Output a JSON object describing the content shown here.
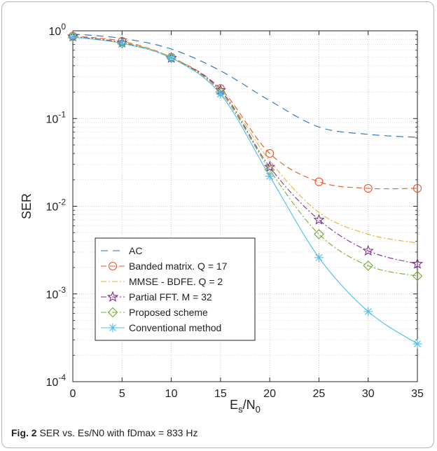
{
  "caption": {
    "label": "Fig. 2",
    "text": "SER vs. Es/N0 with fDmax = 833 Hz"
  },
  "chart_data": {
    "type": "line",
    "xlabel": "Es/N0",
    "ylabel": "SER",
    "xlim": [
      0,
      35
    ],
    "ylim": [
      0.0001,
      1
    ],
    "yscale": "log",
    "xticks": [
      "0",
      "5",
      "10",
      "15",
      "20",
      "25",
      "30",
      "35"
    ],
    "yticks": [
      "10^-4",
      "10^-3",
      "10^-2",
      "10^-1",
      "10^0"
    ],
    "grid": true,
    "legend_position": "bottom-left",
    "x": [
      0,
      5,
      10,
      15,
      20,
      25,
      30,
      35
    ],
    "series": [
      {
        "name": "AC",
        "color": "#1f6fc4",
        "dash": "10,7",
        "marker": "none",
        "values": [
          0.92,
          0.82,
          0.62,
          0.35,
          0.16,
          0.08,
          0.066,
          0.061
        ]
      },
      {
        "name": "Banded matrix. Q = 17",
        "color": "#e2592a",
        "dash": "8,5",
        "marker": "circle",
        "values": [
          0.87,
          0.76,
          0.5,
          0.22,
          0.04,
          0.019,
          0.016,
          0.016
        ]
      },
      {
        "name": "MMSE - BDFE. Q = 2",
        "color": "#edb120",
        "dash": "8,3,2,3",
        "marker": "none",
        "values": [
          0.86,
          0.74,
          0.5,
          0.21,
          0.033,
          0.0085,
          0.0048,
          0.0038
        ]
      },
      {
        "name": "Partial FFT. M = 32",
        "color": "#7e2f8e",
        "dash": "8,3,2,3",
        "marker": "star",
        "values": [
          0.86,
          0.73,
          0.49,
          0.21,
          0.028,
          0.007,
          0.0031,
          0.0022
        ]
      },
      {
        "name": "Proposed scheme",
        "color": "#77ac30",
        "dash": "8,3,2,3",
        "marker": "diamond",
        "values": [
          0.85,
          0.72,
          0.49,
          0.2,
          0.026,
          0.0048,
          0.0021,
          0.0016
        ]
      },
      {
        "name": "Conventional method",
        "color": "#4dbeee",
        "dash": "",
        "marker": "asterisk",
        "values": [
          0.85,
          0.72,
          0.49,
          0.19,
          0.022,
          0.0026,
          0.00063,
          0.00027
        ]
      }
    ]
  }
}
